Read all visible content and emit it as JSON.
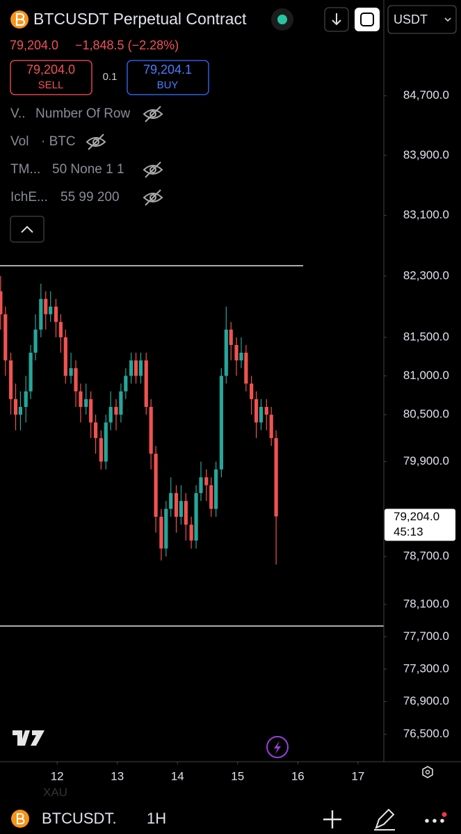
{
  "header": {
    "symbol": "BTCUSDT Perpetual Contract",
    "price": "79,204.0",
    "change": "−1,848.5 (−2.28%)",
    "sell_price": "79,204.0",
    "sell_label": "SELL",
    "spread": "0.1",
    "buy_price": "79,204.1",
    "buy_label": "BUY",
    "currency": "USDT"
  },
  "indicators": [
    {
      "name": "V..",
      "params": "Number Of Row"
    },
    {
      "name": "Vol",
      "params": "· BTC"
    },
    {
      "name": "TM...",
      "params": "50 None 1 1"
    },
    {
      "name": "IchE...",
      "params": "55 99 200"
    }
  ],
  "footer": {
    "symbol": "BTCUSDT.",
    "interval": "1H",
    "faded": "XAU"
  },
  "chart_data": {
    "type": "candlestick",
    "log": true,
    "grid": false,
    "up_color": "#26a69a",
    "down_color": "#ef5350",
    "xlim": [
      11.05,
      17.43
    ],
    "xticks": [
      12,
      13,
      14,
      15,
      16,
      17
    ],
    "ylim": [
      76200,
      85500
    ],
    "yticks": [
      {
        "value": 84700,
        "label": "84,700.0"
      },
      {
        "value": 83900,
        "label": "83,900.0"
      },
      {
        "value": 83100,
        "label": "83,100.0"
      },
      {
        "value": 82300,
        "label": "82,300.0"
      },
      {
        "value": 81500,
        "label": "81,500.0"
      },
      {
        "value": 81000,
        "label": "81,000.0"
      },
      {
        "value": 80500,
        "label": "80,500.0"
      },
      {
        "value": 79900,
        "label": "79,900.0"
      },
      {
        "value": 78700,
        "label": "78,700.0"
      },
      {
        "value": 78100,
        "label": "78,100.0"
      },
      {
        "value": 77700,
        "label": "77,700.0"
      },
      {
        "value": 77300,
        "label": "77,300.0"
      },
      {
        "value": 76900,
        "label": "76,900.0"
      },
      {
        "value": 76500,
        "label": "76,500.0"
      }
    ],
    "price_tag": {
      "value": 79204,
      "label": "79,204.0",
      "countdown": "45:13"
    },
    "x": [
      11.06,
      11.14,
      11.23,
      11.31,
      11.39,
      11.48,
      11.56,
      11.64,
      11.73,
      11.81,
      11.89,
      11.98,
      12.06,
      12.14,
      12.23,
      12.31,
      12.39,
      12.48,
      12.56,
      12.64,
      12.73,
      12.81,
      12.89,
      12.98,
      13.06,
      13.14,
      13.23,
      13.31,
      13.39,
      13.48,
      13.56,
      13.64,
      13.73,
      13.81,
      13.89,
      13.98,
      14.06,
      14.14,
      14.23,
      14.31,
      14.39,
      14.48,
      14.56,
      14.64,
      14.73,
      14.81,
      14.89,
      14.98,
      15.06,
      15.14,
      15.23,
      15.31,
      15.39,
      15.48,
      15.56,
      15.64
    ],
    "open": [
      82100,
      81800,
      81200,
      80700,
      80500,
      80600,
      80800,
      81300,
      81600,
      82000,
      81800,
      81900,
      81700,
      81500,
      81000,
      81100,
      80800,
      80600,
      80700,
      80400,
      80200,
      79900,
      80400,
      80600,
      80500,
      80800,
      81000,
      81200,
      81000,
      81200,
      80600,
      80000,
      79200,
      78800,
      79300,
      79500,
      79200,
      79400,
      79100,
      78900,
      79500,
      79700,
      79600,
      79300,
      79800,
      81000,
      81600,
      81400,
      81200,
      81300,
      80900,
      80700,
      80400,
      80600,
      80500,
      80200
    ],
    "high": [
      82300,
      81900,
      81300,
      80900,
      80800,
      81000,
      81400,
      81800,
      82200,
      82100,
      82100,
      82000,
      81800,
      81600,
      81300,
      81200,
      80900,
      80900,
      80800,
      80500,
      80300,
      80500,
      80800,
      80700,
      80900,
      81100,
      81300,
      81300,
      81300,
      81300,
      80700,
      80100,
      79300,
      79400,
      79700,
      79600,
      79600,
      79500,
      79200,
      79600,
      79900,
      79800,
      79700,
      79900,
      81100,
      81900,
      81700,
      81500,
      81500,
      81400,
      81000,
      80800,
      80700,
      80700,
      80600,
      80300
    ],
    "low": [
      81600,
      81000,
      80500,
      80300,
      80300,
      80400,
      80700,
      81200,
      81500,
      81600,
      81700,
      81500,
      81300,
      80900,
      80900,
      80600,
      80400,
      80500,
      80200,
      80000,
      79800,
      79800,
      80300,
      80300,
      80400,
      80700,
      80900,
      80900,
      80900,
      80500,
      79800,
      79000,
      78650,
      78700,
      79200,
      79000,
      79100,
      78900,
      78800,
      78800,
      79400,
      79400,
      79200,
      79200,
      79700,
      80900,
      81200,
      81000,
      81100,
      80800,
      80500,
      80200,
      80300,
      80300,
      80100,
      78600
    ],
    "close": [
      81800,
      81200,
      80700,
      80500,
      80600,
      80800,
      81300,
      81600,
      82000,
      81800,
      81900,
      81700,
      81500,
      81000,
      81100,
      80800,
      80600,
      80700,
      80400,
      80200,
      79900,
      80400,
      80600,
      80500,
      80800,
      81000,
      81200,
      81000,
      81200,
      80600,
      80000,
      79200,
      78800,
      79300,
      79500,
      79200,
      79400,
      79100,
      78900,
      79500,
      79700,
      79600,
      79300,
      79800,
      81000,
      81600,
      81400,
      81200,
      81300,
      80900,
      80700,
      80400,
      80600,
      80500,
      80200,
      79204
    ]
  }
}
